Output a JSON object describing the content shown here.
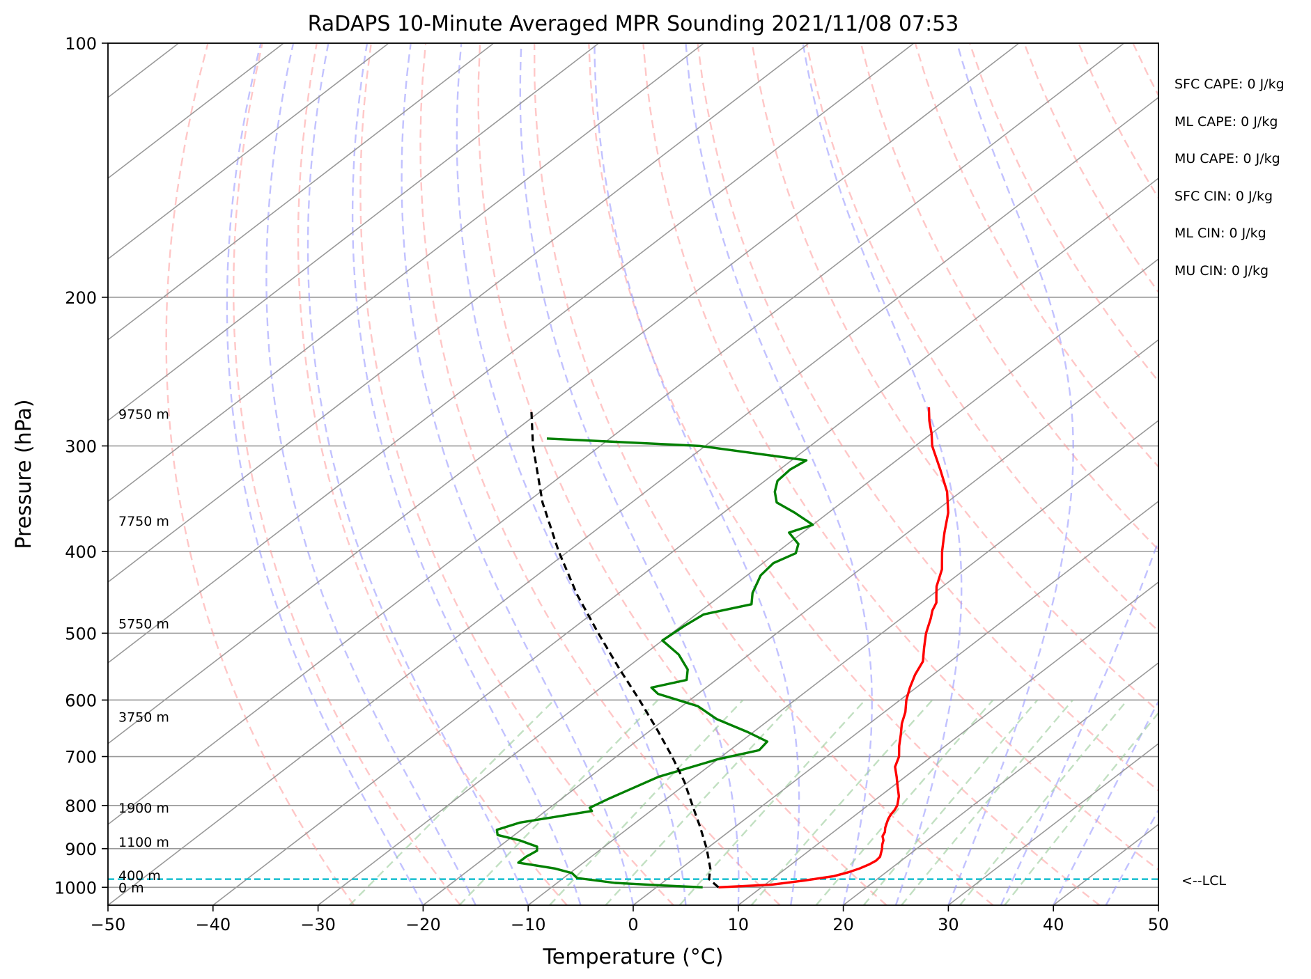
{
  "chart_data": {
    "type": "skew-t",
    "title": "RaDAPS 10-Minute Averaged MPR Sounding 2021/11/08 07:53",
    "xlabel": "Temperature (°C)",
    "ylabel": "Pressure (hPa)",
    "xlim": [
      -50,
      50
    ],
    "ylim": [
      1050,
      100
    ],
    "y_scale": "log",
    "x_ticks": [
      "−50",
      "−40",
      "−30",
      "−20",
      "−10",
      "0",
      "10",
      "20",
      "30",
      "40",
      "50"
    ],
    "y_ticks": [
      "100",
      "200",
      "300",
      "400",
      "500",
      "600",
      "700",
      "800",
      "900",
      "1000"
    ],
    "colors": {
      "temperature": "#ff0000",
      "dewpoint": "#008000",
      "parcel": "#000000",
      "dry_adiabats": "#ff9999",
      "moist_adiabats": "#9999ff",
      "mixing_ratio": "#99cc99",
      "isotherms": "#999999",
      "lcl": "#17becf"
    },
    "series": [
      {
        "name": "temperature",
        "points": [
          {
            "p": 1000,
            "t": 5.9
          },
          {
            "p": 993,
            "t": 10.6
          },
          {
            "p": 982,
            "t": 13.2
          },
          {
            "p": 970,
            "t": 15.5
          },
          {
            "p": 960,
            "t": 16.4
          },
          {
            "p": 950,
            "t": 17.0
          },
          {
            "p": 940,
            "t": 17.4
          },
          {
            "p": 930,
            "t": 17.6
          },
          {
            "p": 920,
            "t": 17.5
          },
          {
            "p": 910,
            "t": 17.1
          },
          {
            "p": 900,
            "t": 16.7
          },
          {
            "p": 890,
            "t": 16.2
          },
          {
            "p": 880,
            "t": 15.8
          },
          {
            "p": 870,
            "t": 15.2
          },
          {
            "p": 860,
            "t": 14.9
          },
          {
            "p": 850,
            "t": 14.4
          },
          {
            "p": 840,
            "t": 14.0
          },
          {
            "p": 830,
            "t": 13.6
          },
          {
            "p": 820,
            "t": 13.3
          },
          {
            "p": 810,
            "t": 13.1
          },
          {
            "p": 800,
            "t": 12.8
          },
          {
            "p": 780,
            "t": 11.8
          },
          {
            "p": 760,
            "t": 10.5
          },
          {
            "p": 740,
            "t": 9.2
          },
          {
            "p": 720,
            "t": 7.8
          },
          {
            "p": 700,
            "t": 6.9
          },
          {
            "p": 680,
            "t": 5.6
          },
          {
            "p": 660,
            "t": 4.4
          },
          {
            "p": 640,
            "t": 3.1
          },
          {
            "p": 620,
            "t": 2.0
          },
          {
            "p": 600,
            "t": 0.6
          },
          {
            "p": 580,
            "t": -0.6
          },
          {
            "p": 560,
            "t": -1.7
          },
          {
            "p": 540,
            "t": -2.6
          },
          {
            "p": 520,
            "t": -4.2
          },
          {
            "p": 500,
            "t": -5.8
          },
          {
            "p": 480,
            "t": -7.2
          },
          {
            "p": 470,
            "t": -8.0
          },
          {
            "p": 460,
            "t": -8.6
          },
          {
            "p": 450,
            "t": -9.6
          },
          {
            "p": 440,
            "t": -10.6
          },
          {
            "p": 420,
            "t": -12.2
          },
          {
            "p": 400,
            "t": -14.4
          },
          {
            "p": 380,
            "t": -16.5
          },
          {
            "p": 360,
            "t": -18.6
          },
          {
            "p": 340,
            "t": -21.3
          },
          {
            "p": 320,
            "t": -24.7
          },
          {
            "p": 300,
            "t": -28.4
          },
          {
            "p": 290,
            "t": -30.0
          },
          {
            "p": 280,
            "t": -31.8
          },
          {
            "p": 270,
            "t": -33.5
          }
        ]
      },
      {
        "name": "dewpoint",
        "points": [
          {
            "p": 1000,
            "t": 4.4
          },
          {
            "p": 995,
            "t": 0.4
          },
          {
            "p": 988,
            "t": -4.5
          },
          {
            "p": 975,
            "t": -8.7
          },
          {
            "p": 962,
            "t": -9.8
          },
          {
            "p": 950,
            "t": -12.0
          },
          {
            "p": 935,
            "t": -16.2
          },
          {
            "p": 920,
            "t": -16.2
          },
          {
            "p": 905,
            "t": -15.9
          },
          {
            "p": 895,
            "t": -16.4
          },
          {
            "p": 880,
            "t": -18.8
          },
          {
            "p": 867,
            "t": -21.6
          },
          {
            "p": 855,
            "t": -22.3
          },
          {
            "p": 838,
            "t": -21.0
          },
          {
            "p": 812,
            "t": -15.6
          },
          {
            "p": 805,
            "t": -16.2
          },
          {
            "p": 785,
            "t": -15.5
          },
          {
            "p": 740,
            "t": -13.5
          },
          {
            "p": 705,
            "t": -10.0
          },
          {
            "p": 688,
            "t": -7.2
          },
          {
            "p": 672,
            "t": -7.5
          },
          {
            "p": 655,
            "t": -10.5
          },
          {
            "p": 632,
            "t": -15.1
          },
          {
            "p": 610,
            "t": -18.5
          },
          {
            "p": 590,
            "t": -23.8
          },
          {
            "p": 580,
            "t": -25.2
          },
          {
            "p": 568,
            "t": -22.8
          },
          {
            "p": 552,
            "t": -24.0
          },
          {
            "p": 530,
            "t": -26.7
          },
          {
            "p": 510,
            "t": -30.0
          },
          {
            "p": 490,
            "t": -29.7
          },
          {
            "p": 475,
            "t": -29.3
          },
          {
            "p": 462,
            "t": -26.0
          },
          {
            "p": 448,
            "t": -27.3
          },
          {
            "p": 427,
            "t": -28.7
          },
          {
            "p": 413,
            "t": -29.0
          },
          {
            "p": 402,
            "t": -28.1
          },
          {
            "p": 392,
            "t": -29.0
          },
          {
            "p": 380,
            "t": -31.3
          },
          {
            "p": 372,
            "t": -30.0
          },
          {
            "p": 360,
            "t": -33.2
          },
          {
            "p": 350,
            "t": -36.2
          },
          {
            "p": 340,
            "t": -37.7
          },
          {
            "p": 330,
            "t": -38.8
          },
          {
            "p": 320,
            "t": -39.0
          },
          {
            "p": 312,
            "t": -38.6
          },
          {
            "p": 300,
            "t": -50.5
          },
          {
            "p": 294,
            "t": -66.0
          }
        ]
      },
      {
        "name": "parcel",
        "points": [
          {
            "p": 1000,
            "t": 5.9
          },
          {
            "p": 978,
            "t": 4.0
          },
          {
            "p": 950,
            "t": 2.8
          },
          {
            "p": 900,
            "t": 0.0
          },
          {
            "p": 850,
            "t": -3.2
          },
          {
            "p": 800,
            "t": -6.7
          },
          {
            "p": 750,
            "t": -10.4
          },
          {
            "p": 700,
            "t": -14.7
          },
          {
            "p": 650,
            "t": -19.5
          },
          {
            "p": 600,
            "t": -24.8
          },
          {
            "p": 550,
            "t": -30.7
          },
          {
            "p": 500,
            "t": -37.0
          },
          {
            "p": 450,
            "t": -43.8
          },
          {
            "p": 400,
            "t": -50.9
          },
          {
            "p": 350,
            "t": -58.5
          },
          {
            "p": 300,
            "t": -66.4
          },
          {
            "p": 272,
            "t": -71.0
          }
        ]
      }
    ],
    "lcl": {
      "pressure": 978,
      "label": "<--LCL"
    },
    "height_labels": [
      "9750 m",
      "7750 m",
      "5750 m",
      "3750 m",
      "1900 m",
      "1100 m",
      "400 m",
      "0 m"
    ],
    "height_label_pressures": [
      275,
      368,
      487,
      628,
      805,
      883,
      968,
      1000
    ],
    "annotations": [
      "SFC CAPE: 0 J/kg",
      "ML CAPE: 0 J/kg",
      "MU CAPE: 0 J/kg",
      "SFC CIN: 0 J/kg",
      "ML CIN: 0 J/kg",
      "MU CIN: 0 J/kg"
    ],
    "grid": true
  }
}
